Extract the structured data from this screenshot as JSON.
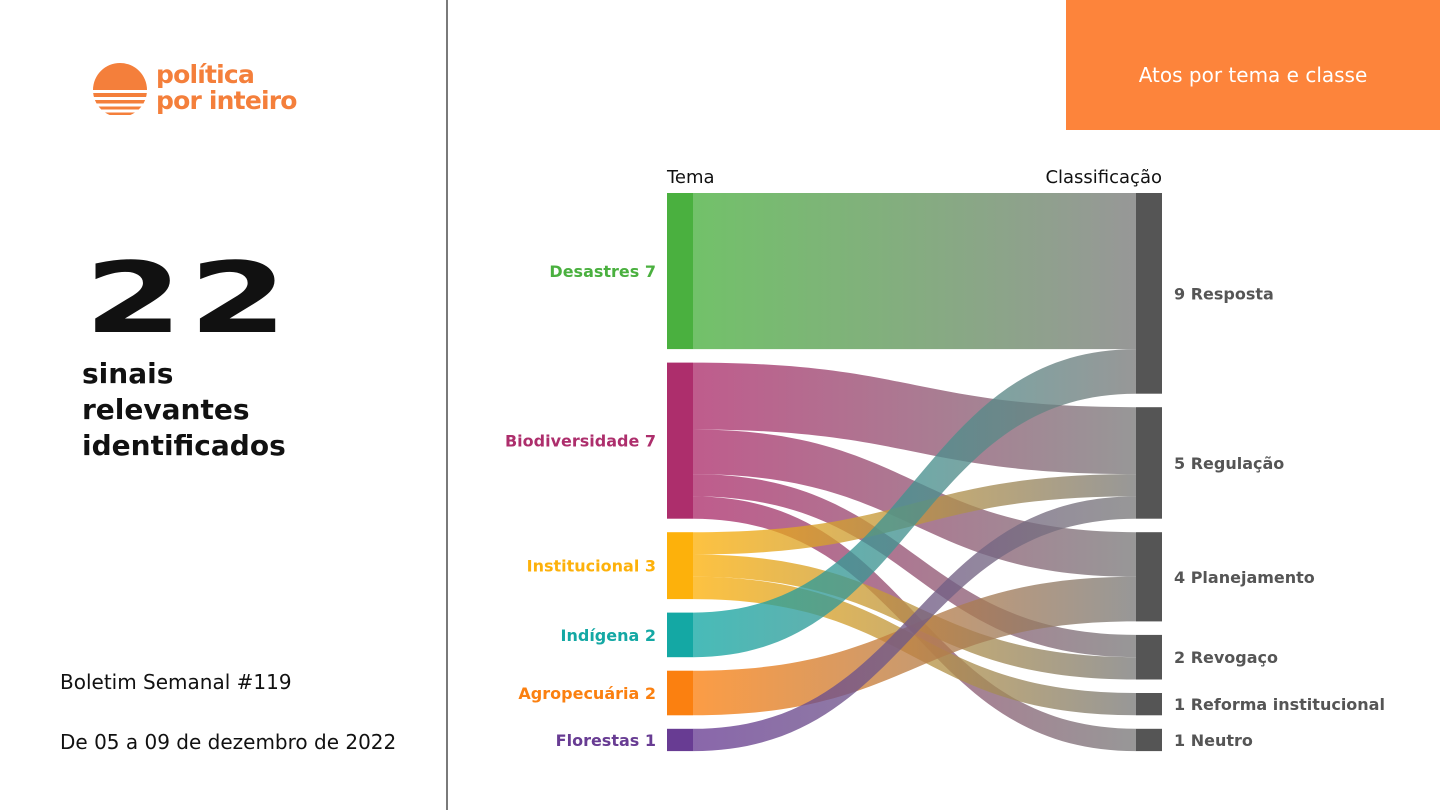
{
  "brand": {
    "line1": "política",
    "line2": "por inteiro",
    "color": "#f47f3b"
  },
  "summary": {
    "count": "22",
    "caption_lines": [
      "sinais",
      "relevantes",
      "identificados"
    ]
  },
  "bulletin": {
    "title": "Boletim Semanal #119",
    "date_range": "De 05 a 09 de dezembro de 2022"
  },
  "header": {
    "title": "Atos por tema e classe",
    "color": "#fd843b"
  },
  "chart_data": {
    "type": "sankey",
    "left_axis_label": "Tema",
    "right_axis_label": "Classificação",
    "sources": [
      {
        "name": "Desastres",
        "value": 7,
        "label": "Desastres 7",
        "color": "#4ab03f"
      },
      {
        "name": "Biodiversidade",
        "value": 7,
        "label": "Biodiversidade 7",
        "color": "#ad2e6c"
      },
      {
        "name": "Institucional",
        "value": 3,
        "label": "Institucional 3",
        "color": "#fdb10b"
      },
      {
        "name": "Indígena",
        "value": 2,
        "label": "Indígena 2",
        "color": "#14a8a4"
      },
      {
        "name": "Agropecuária",
        "value": 2,
        "label": "Agropecuária 2",
        "color": "#fb8010"
      },
      {
        "name": "Florestas",
        "value": 1,
        "label": "Florestas 1",
        "color": "#683c93"
      }
    ],
    "targets": [
      {
        "name": "Resposta",
        "value": 9,
        "label": "9 Resposta"
      },
      {
        "name": "Regulação",
        "value": 5,
        "label": "5 Regulação"
      },
      {
        "name": "Planejamento",
        "value": 4,
        "label": "4 Planejamento"
      },
      {
        "name": "Revogaço",
        "value": 2,
        "label": "2 Revogaço"
      },
      {
        "name": "Reforma institucional",
        "value": 1,
        "label": "1 Reforma institucional"
      },
      {
        "name": "Neutro",
        "value": 1,
        "label": "1 Neutro"
      }
    ],
    "target_color": "#555555",
    "link_target_color": "#7a7a7a",
    "links": [
      {
        "source": "Desastres",
        "target": "Resposta",
        "value": 7
      },
      {
        "source": "Biodiversidade",
        "target": "Regulação",
        "value": 3
      },
      {
        "source": "Biodiversidade",
        "target": "Planejamento",
        "value": 2
      },
      {
        "source": "Biodiversidade",
        "target": "Revogaço",
        "value": 1
      },
      {
        "source": "Biodiversidade",
        "target": "Neutro",
        "value": 1
      },
      {
        "source": "Institucional",
        "target": "Regulação",
        "value": 1
      },
      {
        "source": "Institucional",
        "target": "Revogaço",
        "value": 1
      },
      {
        "source": "Institucional",
        "target": "Reforma institucional",
        "value": 1
      },
      {
        "source": "Indígena",
        "target": "Resposta",
        "value": 2
      },
      {
        "source": "Agropecuária",
        "target": "Planejamento",
        "value": 2
      },
      {
        "source": "Florestas",
        "target": "Regulação",
        "value": 1
      }
    ]
  }
}
